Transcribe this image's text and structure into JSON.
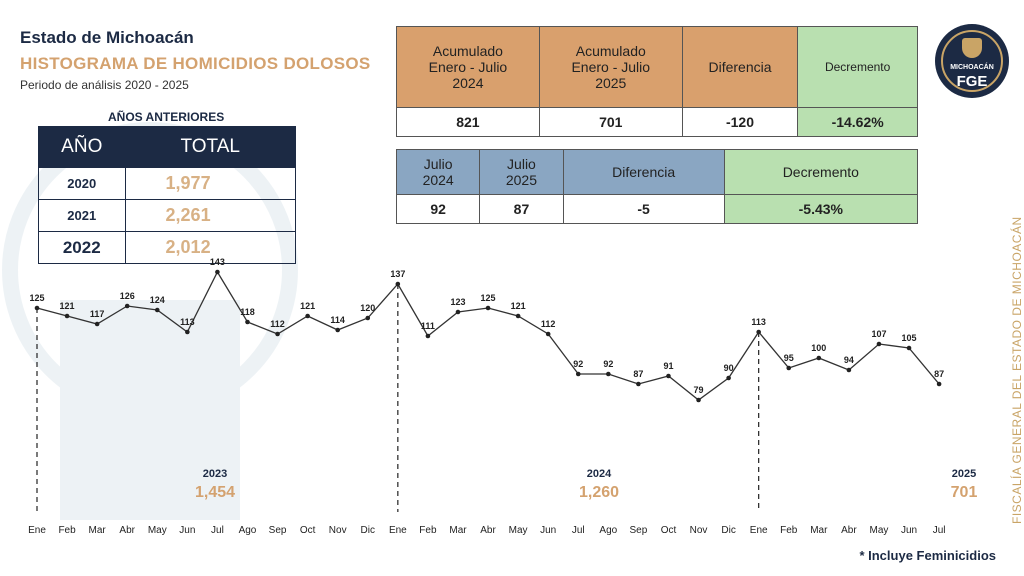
{
  "header": {
    "state": "Estado de Michoacán",
    "title": "HISTOGRAMA DE HOMICIDIOS DOLOSOS",
    "period": "Periodo de análisis 2020 - 2025"
  },
  "previous_years": {
    "title": "AÑOS ANTERIORES",
    "col_year": "AÑO",
    "col_total": "TOTAL",
    "rows": [
      {
        "year": "2020",
        "total": "1,977"
      },
      {
        "year": "2021",
        "total": "2,261"
      },
      {
        "year": "2022",
        "total": "2,012"
      }
    ]
  },
  "accumulated": {
    "h1": [
      "Acumulado",
      "Enero - Julio",
      "2024"
    ],
    "h2": [
      "Acumulado",
      "Enero - Julio",
      "2025"
    ],
    "h3": "Diferencia",
    "h4": "Decremento",
    "v1": "821",
    "v2": "701",
    "v3": "-120",
    "v4": "-14.62%"
  },
  "july": {
    "h1": [
      "Julio",
      "2024"
    ],
    "h2": [
      "Julio",
      "2025"
    ],
    "h3": "Diferencia",
    "h4": "Decremento",
    "v1": "92",
    "v2": "87",
    "v3": "-5",
    "v4": "-5.43%"
  },
  "logo": {
    "line1": "MICHOACÁN",
    "line2": "FGE"
  },
  "side_text": "FISCALÍA GENERAL DEL ESTADO DE MICHOACÁN",
  "footnote": "* Incluye Feminicidios",
  "year_totals": [
    {
      "year": "2023",
      "total": "1,454"
    },
    {
      "year": "2024",
      "total": "1,260"
    },
    {
      "year": "2025",
      "total": "701"
    }
  ],
  "colors": {
    "navy": "#1c2a44",
    "gold": "#d4a26f",
    "orange": "#d9a06d",
    "blue": "#8aa6c2",
    "green": "#b9e0b0"
  },
  "chart_data": {
    "type": "line",
    "x": [
      "Ene",
      "Feb",
      "Mar",
      "Abr",
      "May",
      "Jun",
      "Jul",
      "Ago",
      "Sep",
      "Oct",
      "Nov",
      "Dic",
      "Ene",
      "Feb",
      "Mar",
      "Abr",
      "May",
      "Jun",
      "Jul",
      "Ago",
      "Sep",
      "Oct",
      "Nov",
      "Dic",
      "Ene",
      "Feb",
      "Mar",
      "Abr",
      "May",
      "Jun",
      "Jul"
    ],
    "values": [
      125,
      121,
      117,
      126,
      124,
      113,
      143,
      118,
      112,
      121,
      114,
      120,
      137,
      111,
      123,
      125,
      121,
      112,
      92,
      92,
      87,
      91,
      79,
      90,
      113,
      95,
      100,
      94,
      107,
      105,
      87
    ],
    "year_starts": [
      "Ene 2023",
      "Ene 2024",
      "Ene 2025"
    ],
    "ylim": [
      60,
      150
    ],
    "title": "",
    "xlabel": "",
    "ylabel": ""
  }
}
